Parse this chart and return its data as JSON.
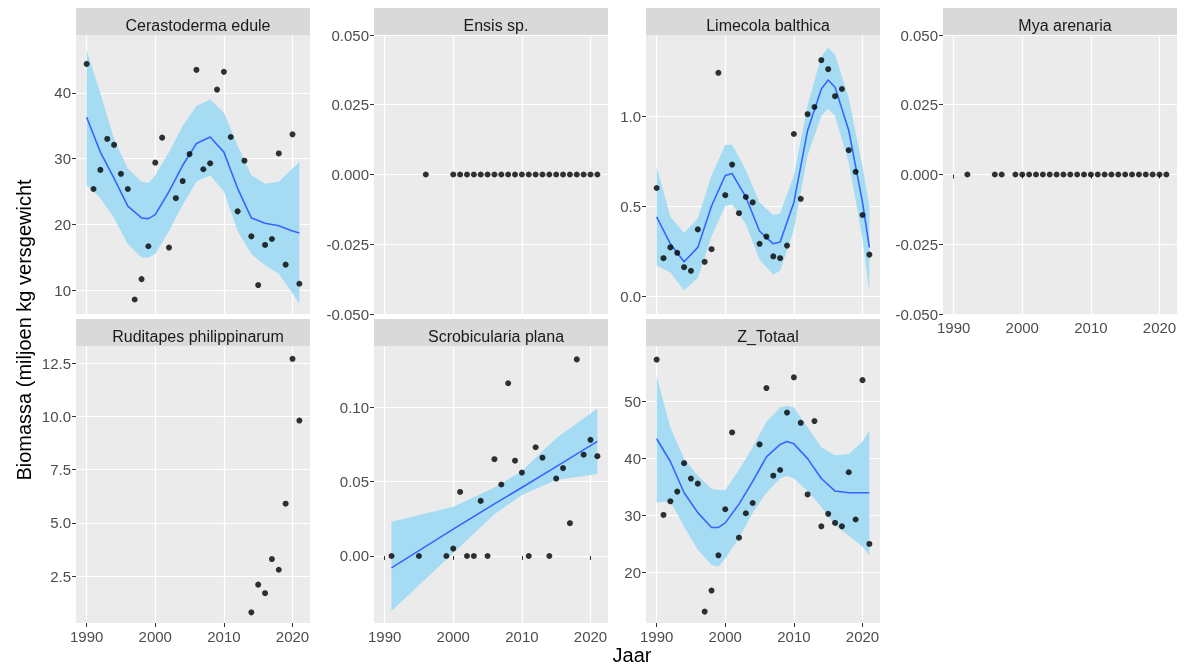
{
  "chart_data": [
    {
      "type": "scatter",
      "title": "Cerastoderma edule",
      "ylabel": "Biomassa (miljoen kg versgewicht",
      "grid": true,
      "tick_labels": "y",
      "xlim": [
        1988.45,
        2022.55
      ],
      "xticks": [
        1990,
        2000,
        2010,
        2020
      ],
      "ylim": [
        6.4,
        48.8
      ],
      "yticks": [
        10,
        20,
        30,
        40
      ],
      "series": [
        {
          "type": "line",
          "color": "#3366ff",
          "marker": "none",
          "x": [
            1990,
            1992,
            1994,
            1996,
            1998,
            1999,
            2000,
            2002,
            2004,
            2006,
            2008,
            2010,
            2012,
            2014,
            2016,
            2018,
            2020,
            2021
          ],
          "values": [
            36.3,
            31,
            27,
            22.8,
            21,
            20.9,
            21.5,
            25,
            29,
            32.3,
            33.3,
            31,
            25.5,
            21,
            20.2,
            19.8,
            19,
            18.7
          ],
          "upper": [
            46.5,
            40,
            33,
            28.5,
            26.5,
            26.3,
            27.5,
            31,
            35,
            38,
            39,
            37,
            32,
            27.5,
            26.2,
            26.5,
            28.5,
            29.5
          ],
          "lower": [
            26,
            24,
            21,
            17,
            15,
            15,
            15.5,
            19,
            23,
            26.5,
            27.5,
            25,
            19,
            15.5,
            13.8,
            12.5,
            9.5,
            8
          ]
        },
        {
          "color": "#000000",
          "marker": "circle",
          "x": [
            1990,
            1991,
            1992,
            1993,
            1994,
            1995,
            1996,
            1997,
            1998,
            1999,
            2000,
            2001,
            2002,
            2003,
            2004,
            2005,
            2006,
            2007,
            2008,
            2009,
            2010,
            2011,
            2012,
            2013,
            2014,
            2015,
            2016,
            2017,
            2018,
            2019,
            2020,
            2021
          ],
          "values": [
            44.4,
            25.4,
            28.3,
            33.0,
            32.1,
            27.7,
            25.4,
            8.6,
            11.7,
            16.7,
            29.4,
            33.2,
            16.5,
            24.0,
            26.6,
            30.7,
            43.5,
            28.4,
            29.3,
            40.5,
            43.2,
            33.3,
            22.0,
            29.7,
            18.2,
            10.8,
            16.9,
            17.8,
            30.8,
            13.9,
            33.7,
            11.0
          ]
        }
      ]
    },
    {
      "type": "scatter",
      "title": "Ensis sp.",
      "grid": true,
      "tick_labels": "y",
      "xlim": [
        1988.45,
        2022.55
      ],
      "xticks": [
        1990,
        2000,
        2010,
        2020
      ],
      "ylim": [
        -0.05,
        0.05
      ],
      "yticks": [
        {
          "value": -0.05,
          "label": "-0.050"
        },
        {
          "value": -0.025,
          "label": "-0.025"
        },
        {
          "value": 0,
          "label": "0.000"
        },
        {
          "value": 0.025,
          "label": "0.025"
        },
        {
          "value": 0.05,
          "label": "0.050"
        }
      ],
      "series": [
        {
          "color": "#000000",
          "marker": "circle",
          "x": [
            1996,
            2000,
            2001,
            2002,
            2003,
            2004,
            2005,
            2006,
            2007,
            2008,
            2009,
            2010,
            2011,
            2012,
            2013,
            2014,
            2015,
            2016,
            2017,
            2018,
            2019,
            2020,
            2021
          ],
          "values": [
            0,
            0,
            0,
            0,
            0,
            0,
            0,
            0,
            0,
            0,
            0,
            0,
            0,
            0,
            0,
            0,
            0,
            0,
            0,
            0,
            0,
            0,
            0
          ]
        }
      ]
    },
    {
      "type": "scatter",
      "title": "Limecola balthica",
      "grid": true,
      "tick_labels": "y",
      "xlim": [
        1988.45,
        2022.55
      ],
      "xticks": [
        1990,
        2000,
        2010,
        2020
      ],
      "ylim": [
        -0.1,
        1.45
      ],
      "yticks": [
        {
          "value": 0,
          "label": "0.0"
        },
        {
          "value": 0.5,
          "label": "0.5"
        },
        {
          "value": 1,
          "label": "1.0"
        }
      ],
      "series": [
        {
          "type": "line",
          "color": "#3366ff",
          "marker": "none",
          "x": [
            1990,
            1992,
            1994,
            1996,
            1998,
            2000,
            2001,
            2003,
            2005,
            2007,
            2008,
            2010,
            2012,
            2014,
            2015,
            2016,
            2018,
            2020,
            2021
          ],
          "values": [
            0.44,
            0.29,
            0.19,
            0.27,
            0.5,
            0.67,
            0.68,
            0.55,
            0.36,
            0.29,
            0.3,
            0.52,
            0.92,
            1.15,
            1.2,
            1.16,
            0.92,
            0.52,
            0.27
          ],
          "upper": [
            0.72,
            0.44,
            0.35,
            0.43,
            0.67,
            0.84,
            0.84,
            0.7,
            0.52,
            0.45,
            0.46,
            0.67,
            1.06,
            1.33,
            1.38,
            1.34,
            1.1,
            0.72,
            0.5
          ],
          "lower": [
            0.17,
            0.13,
            0.03,
            0.1,
            0.33,
            0.5,
            0.51,
            0.4,
            0.2,
            0.12,
            0.14,
            0.37,
            0.78,
            1.0,
            1.04,
            1.0,
            0.74,
            0.32,
            0.02
          ]
        },
        {
          "color": "#000000",
          "marker": "circle",
          "x": [
            1990,
            1991,
            1992,
            1993,
            1994,
            1995,
            1996,
            1997,
            1998,
            1999,
            2000,
            2001,
            2002,
            2003,
            2004,
            2005,
            2006,
            2007,
            2008,
            2009,
            2010,
            2011,
            2012,
            2013,
            2014,
            2015,
            2016,
            2017,
            2018,
            2019,
            2020,
            2021
          ],
          "values": [
            0.6,
            0.21,
            0.27,
            0.24,
            0.16,
            0.14,
            0.37,
            0.19,
            0.26,
            1.24,
            0.56,
            0.73,
            0.46,
            0.55,
            0.52,
            0.29,
            0.33,
            0.22,
            0.21,
            0.28,
            0.9,
            0.54,
            1.01,
            1.05,
            1.31,
            1.26,
            1.11,
            1.15,
            0.81,
            0.69,
            0.45,
            0.23
          ]
        }
      ]
    },
    {
      "type": "scatter",
      "title": "Mya arenaria",
      "grid": true,
      "xlim": [
        1988.45,
        2022.55
      ],
      "xticks": [
        1990,
        2000,
        2010,
        2020
      ],
      "ylim": [
        -0.05,
        0.05
      ],
      "yticks": [
        {
          "value": -0.05,
          "label": "-0.050"
        },
        {
          "value": -0.025,
          "label": "-0.025"
        },
        {
          "value": 0,
          "label": "0.000"
        },
        {
          "value": 0.025,
          "label": "0.025"
        },
        {
          "value": 0.05,
          "label": "0.050"
        }
      ],
      "series": [
        {
          "color": "#000000",
          "marker": "circle",
          "x": [
            1992,
            1996,
            1997,
            1999,
            2000,
            2001,
            2002,
            2003,
            2004,
            2005,
            2006,
            2007,
            2008,
            2009,
            2010,
            2011,
            2012,
            2013,
            2014,
            2015,
            2016,
            2017,
            2018,
            2019,
            2020,
            2021
          ],
          "values": [
            0,
            0,
            0,
            0,
            0,
            0,
            0,
            0,
            0,
            0,
            0,
            0,
            0,
            0,
            0,
            0,
            0,
            0,
            0,
            0,
            0,
            0,
            0,
            0,
            0,
            0
          ]
        }
      ]
    },
    {
      "type": "scatter",
      "title": "Ruditapes philippinarum",
      "grid": true,
      "xlim": [
        1988.45,
        2022.55
      ],
      "xticks": [
        1990,
        2000,
        2010,
        2020
      ],
      "ylim": [
        0.3,
        13.3
      ],
      "yticks": [
        {
          "value": 2.5,
          "label": "2.5"
        },
        {
          "value": 5,
          "label": "5.0"
        },
        {
          "value": 7.5,
          "label": "7.5"
        },
        {
          "value": 10,
          "label": "10.0"
        },
        {
          "value": 12.5,
          "label": "12.5"
        }
      ],
      "series": [
        {
          "color": "#000000",
          "marker": "circle",
          "x": [
            2014,
            2015,
            2016,
            2017,
            2018,
            2019,
            2020,
            2021
          ],
          "values": [
            0.8,
            2.1,
            1.7,
            3.3,
            2.8,
            5.9,
            12.7,
            9.8
          ]
        }
      ]
    },
    {
      "type": "scatter",
      "title": "Scrobicularia plana",
      "xlabel": "Jaar",
      "grid": true,
      "xlim": [
        1988.45,
        2022.55
      ],
      "xticks": [
        1990,
        2000,
        2010,
        2020
      ],
      "ylim": [
        -0.045,
        0.141
      ],
      "yticks": [
        {
          "value": 0,
          "label": "0.00"
        },
        {
          "value": 0.05,
          "label": "0.05"
        },
        {
          "value": 0.1,
          "label": "0.10"
        }
      ],
      "series": [
        {
          "type": "line",
          "color": "#3366ff",
          "marker": "none",
          "x": [
            1991,
            2000,
            2006,
            2010,
            2015,
            2021
          ],
          "values": [
            -0.008,
            0.018,
            0.035,
            0.046,
            0.06,
            0.077
          ],
          "upper": [
            0.023,
            0.033,
            0.046,
            0.057,
            0.079,
            0.099
          ],
          "lower": [
            -0.037,
            0.002,
            0.028,
            0.041,
            0.051,
            0.055
          ]
        },
        {
          "color": "#000000",
          "marker": "circle",
          "x": [
            1991,
            1995,
            1999,
            2000,
            2001,
            2002,
            2003,
            2004,
            2005,
            2006,
            2007,
            2008,
            2009,
            2010,
            2011,
            2012,
            2013,
            2014,
            2015,
            2016,
            2017,
            2018,
            2019,
            2020,
            2021
          ],
          "values": [
            0,
            0,
            0,
            0.005,
            0.043,
            0,
            0,
            0.037,
            0,
            0.065,
            0.048,
            0.116,
            0.064,
            0.056,
            0,
            0.073,
            0.066,
            0,
            0.052,
            0.059,
            0.022,
            0.132,
            0.068,
            0.078,
            0.067
          ]
        }
      ]
    },
    {
      "type": "scatter",
      "title": "Z_Totaal",
      "grid": true,
      "xlim": [
        1988.45,
        2022.55
      ],
      "xticks": [
        1990,
        2000,
        2010,
        2020
      ],
      "ylim": [
        11.1,
        59.8
      ],
      "yticks": [
        20,
        30,
        40,
        50
      ],
      "series": [
        {
          "type": "line",
          "color": "#3366ff",
          "marker": "none",
          "x": [
            1990,
            1992,
            1994,
            1996,
            1998,
            1999,
            2000,
            2002,
            2004,
            2006,
            2008,
            2009,
            2010,
            2012,
            2014,
            2016,
            2018,
            2020,
            2021
          ],
          "values": [
            43.5,
            39.5,
            34,
            30.5,
            27.9,
            27.9,
            28.7,
            32,
            36,
            40.3,
            42.5,
            43,
            42.6,
            40,
            36.5,
            34.3,
            34,
            34,
            34
          ],
          "upper": [
            54.5,
            45.5,
            40,
            37,
            34.7,
            34.5,
            34.5,
            38,
            42,
            46.5,
            49,
            49.3,
            49,
            45.5,
            42,
            40.6,
            40.8,
            43,
            45
          ],
          "lower": [
            32.3,
            32.5,
            28,
            24,
            21.3,
            21,
            22.5,
            26,
            30.5,
            34,
            36.5,
            37,
            36.5,
            34.3,
            31.5,
            28.3,
            26.5,
            24.5,
            23
          ]
        },
        {
          "color": "#000000",
          "marker": "circle",
          "x": [
            1990,
            1991,
            1992,
            1993,
            1994,
            1995,
            1996,
            1997,
            1998,
            1999,
            2000,
            2001,
            2002,
            2003,
            2004,
            2005,
            2006,
            2007,
            2008,
            2009,
            2010,
            2011,
            2012,
            2013,
            2014,
            2015,
            2016,
            2017,
            2018,
            2019,
            2020,
            2021
          ],
          "values": [
            57.4,
            30.1,
            32.5,
            34.2,
            39.2,
            36.5,
            35.6,
            13.1,
            16.8,
            23.0,
            31.1,
            44.6,
            26.1,
            30.4,
            32.2,
            42.5,
            52.4,
            37.0,
            38.0,
            48.1,
            54.3,
            46.3,
            33.7,
            46.6,
            28.1,
            30.3,
            28.7,
            28.1,
            37.6,
            29.3,
            53.8,
            25.0
          ]
        }
      ]
    }
  ]
}
